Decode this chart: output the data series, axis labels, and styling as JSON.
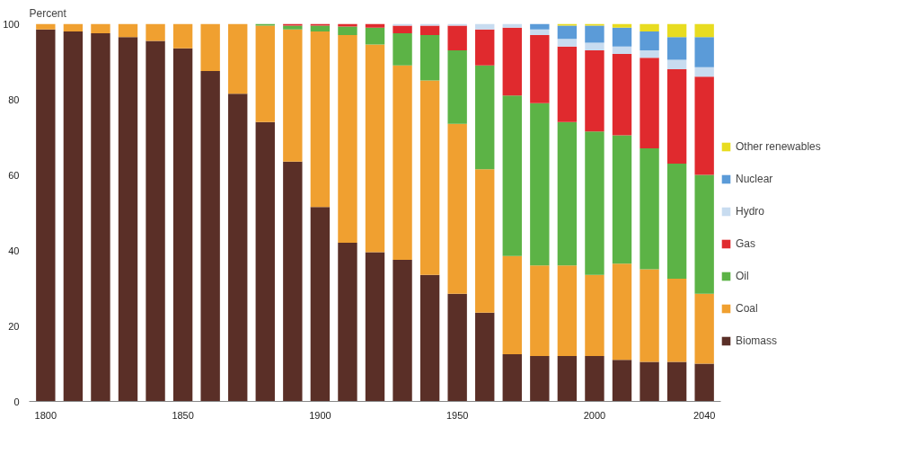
{
  "chart_data": {
    "type": "bar",
    "stacked": true,
    "ylabel": "Percent",
    "x": [
      1800,
      1810,
      1820,
      1830,
      1840,
      1850,
      1860,
      1870,
      1880,
      1890,
      1900,
      1910,
      1920,
      1930,
      1940,
      1950,
      1960,
      1970,
      1980,
      1990,
      2000,
      2010,
      2020,
      2030,
      2040
    ],
    "series": [
      {
        "name": "Biomass",
        "color": "#5a2f27",
        "values": [
          98.5,
          98,
          97.5,
          96.5,
          95.5,
          93.5,
          87.5,
          81.5,
          74,
          63.5,
          51.5,
          42,
          39.5,
          37.5,
          33.5,
          28.5,
          23.5,
          12.5,
          12,
          12,
          12,
          11,
          10.5,
          10.5,
          10
        ]
      },
      {
        "name": "Coal",
        "color": "#f0a030",
        "values": [
          1.5,
          2,
          2.5,
          3.5,
          4.5,
          6.5,
          12.5,
          18.5,
          25.5,
          35,
          46.5,
          55,
          55,
          51.5,
          51.5,
          45,
          38,
          26,
          24,
          24,
          21.5,
          25.5,
          24.5,
          22,
          18.5
        ]
      },
      {
        "name": "Oil",
        "color": "#5cb346",
        "values": [
          null,
          null,
          null,
          null,
          null,
          null,
          null,
          null,
          0.5,
          1,
          1.5,
          2.3,
          4.5,
          8.5,
          12,
          19.5,
          27.5,
          42.5,
          43,
          38,
          38,
          34,
          32,
          30.5,
          31.5
        ]
      },
      {
        "name": "Gas",
        "color": "#e02a2e",
        "values": [
          null,
          null,
          null,
          null,
          null,
          null,
          null,
          null,
          null,
          0.5,
          0.5,
          0.7,
          1,
          2,
          2.5,
          6.5,
          9.5,
          18,
          18,
          20,
          21.5,
          21.5,
          24,
          25,
          26
        ]
      },
      {
        "name": "Hydro",
        "color": "#c8dcf0",
        "values": [
          null,
          null,
          null,
          null,
          null,
          null,
          null,
          null,
          null,
          null,
          null,
          null,
          null,
          0.5,
          0.5,
          0.5,
          1.5,
          1,
          1.5,
          2,
          2,
          2,
          2,
          2.5,
          2.5
        ]
      },
      {
        "name": "Nuclear",
        "color": "#5b9bd8",
        "values": [
          null,
          null,
          null,
          null,
          null,
          null,
          null,
          null,
          null,
          null,
          null,
          null,
          null,
          null,
          null,
          null,
          null,
          null,
          1.5,
          3.5,
          4.5,
          5,
          5,
          6,
          8
        ]
      },
      {
        "name": "Other renewables",
        "color": "#e8dc20",
        "values": [
          null,
          null,
          null,
          null,
          null,
          null,
          null,
          null,
          null,
          null,
          null,
          null,
          null,
          null,
          null,
          null,
          null,
          null,
          null,
          0.5,
          0.5,
          1,
          2,
          3.5,
          3.5
        ]
      }
    ],
    "xlim": [
      1794,
      2046
    ],
    "xticks": [
      1800,
      1850,
      1900,
      1950,
      2000,
      2040
    ],
    "ylim": [
      0,
      100
    ],
    "yticks": [
      0,
      20,
      40,
      60,
      80,
      100
    ],
    "grid": false,
    "legend": "right"
  }
}
